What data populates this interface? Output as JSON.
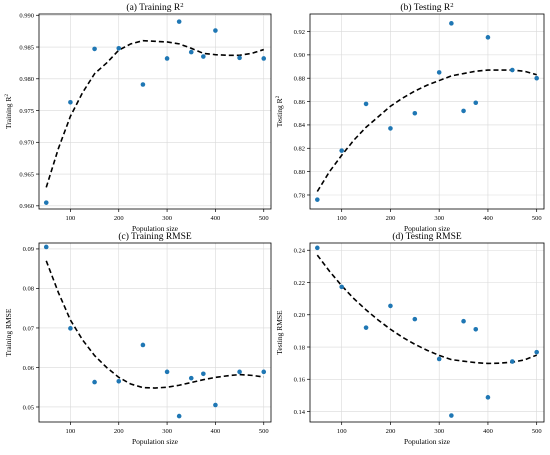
{
  "chart_data": [
    {
      "type": "scatter",
      "title": "(a) Training R",
      "title_sup": "2",
      "xlabel": "Population size",
      "ylabel": "Training R",
      "ylabel_sup": "2",
      "xlim": [
        35,
        515
      ],
      "ylim": [
        0.9595,
        0.9902
      ],
      "xticks": [
        100,
        200,
        300,
        400,
        500
      ],
      "yticks": [
        0.96,
        0.965,
        0.97,
        0.975,
        0.98,
        0.985,
        0.99
      ],
      "ytick_labels": [
        "0.960",
        "0.965",
        "0.970",
        "0.975",
        "0.980",
        "0.985",
        "0.990"
      ],
      "grid": true,
      "series": [
        {
          "kind": "points",
          "x": [
            50,
            100,
            150,
            200,
            250,
            300,
            325,
            350,
            375,
            400,
            450,
            500
          ],
          "y": [
            0.9605,
            0.9763,
            0.9847,
            0.9848,
            0.9791,
            0.9832,
            0.989,
            0.9842,
            0.9835,
            0.9876,
            0.9833,
            0.9832
          ]
        },
        {
          "kind": "fit",
          "x": [
            50,
            75,
            100,
            125,
            150,
            175,
            200,
            225,
            250,
            275,
            300,
            325,
            350,
            375,
            400,
            425,
            450,
            475,
            500
          ],
          "y": [
            0.9629,
            0.969,
            0.9741,
            0.9778,
            0.9808,
            0.9825,
            0.9845,
            0.9855,
            0.986,
            0.9859,
            0.9858,
            0.9855,
            0.9848,
            0.984,
            0.9838,
            0.9837,
            0.9837,
            0.984,
            0.9846
          ]
        }
      ]
    },
    {
      "type": "scatter",
      "title": "(b) Testing R",
      "title_sup": "2",
      "xlabel": "Population size",
      "ylabel": "Testing R",
      "ylabel_sup": "2",
      "xlim": [
        35,
        515
      ],
      "ylim": [
        0.768,
        0.935
      ],
      "xticks": [
        100,
        200,
        300,
        400,
        500
      ],
      "yticks": [
        0.78,
        0.8,
        0.82,
        0.84,
        0.86,
        0.88,
        0.9,
        0.92
      ],
      "ytick_labels": [
        "0.78",
        "0.80",
        "0.82",
        "0.84",
        "0.86",
        "0.88",
        "0.90",
        "0.92"
      ],
      "grid": true,
      "series": [
        {
          "kind": "points",
          "x": [
            50,
            100,
            150,
            200,
            250,
            300,
            325,
            350,
            375,
            400,
            450,
            500
          ],
          "y": [
            0.776,
            0.818,
            0.858,
            0.837,
            0.85,
            0.885,
            0.927,
            0.852,
            0.859,
            0.915,
            0.887,
            0.88
          ]
        },
        {
          "kind": "fit",
          "x": [
            50,
            75,
            100,
            125,
            150,
            175,
            200,
            225,
            250,
            275,
            300,
            325,
            350,
            375,
            400,
            425,
            450,
            475,
            500
          ],
          "y": [
            0.783,
            0.8,
            0.814,
            0.827,
            0.838,
            0.847,
            0.856,
            0.863,
            0.869,
            0.874,
            0.878,
            0.882,
            0.884,
            0.886,
            0.887,
            0.887,
            0.887,
            0.886,
            0.883
          ]
        }
      ]
    },
    {
      "type": "scatter",
      "title": "(c) Training RMSE",
      "xlabel": "Population size",
      "ylabel": "Training RMSE",
      "xlim": [
        35,
        515
      ],
      "ylim": [
        0.0462,
        0.0915
      ],
      "xticks": [
        100,
        200,
        300,
        400,
        500
      ],
      "yticks": [
        0.05,
        0.06,
        0.07,
        0.08,
        0.09
      ],
      "ytick_labels": [
        "0.05",
        "0.06",
        "0.07",
        "0.08",
        "0.09"
      ],
      "grid": true,
      "series": [
        {
          "kind": "points",
          "x": [
            50,
            100,
            150,
            200,
            250,
            300,
            325,
            350,
            375,
            400,
            450,
            500
          ],
          "y": [
            0.0905,
            0.0699,
            0.0563,
            0.0565,
            0.0657,
            0.0589,
            0.0477,
            0.0573,
            0.0584,
            0.0505,
            0.0589,
            0.0589
          ]
        },
        {
          "kind": "fit",
          "x": [
            50,
            75,
            100,
            125,
            150,
            175,
            200,
            225,
            250,
            275,
            300,
            325,
            350,
            375,
            400,
            425,
            450,
            475,
            500
          ],
          "y": [
            0.087,
            0.079,
            0.072,
            0.067,
            0.063,
            0.06,
            0.0575,
            0.0558,
            0.0549,
            0.0548,
            0.055,
            0.0555,
            0.0562,
            0.0569,
            0.0575,
            0.0579,
            0.0582,
            0.058,
            0.0576
          ]
        }
      ]
    },
    {
      "type": "scatter",
      "title": "(d) Testing RMSE",
      "xlabel": "Population size",
      "ylabel": "Testing RMSE",
      "xlim": [
        35,
        515
      ],
      "ylim": [
        0.1335,
        0.2445
      ],
      "xticks": [
        100,
        200,
        300,
        400,
        500
      ],
      "yticks": [
        0.14,
        0.16,
        0.18,
        0.2,
        0.22,
        0.24
      ],
      "ytick_labels": [
        "0.14",
        "0.16",
        "0.18",
        "0.20",
        "0.22",
        "0.24"
      ],
      "grid": true,
      "series": [
        {
          "kind": "points",
          "x": [
            50,
            100,
            150,
            200,
            250,
            300,
            325,
            350,
            375,
            400,
            450,
            500
          ],
          "y": [
            0.2415,
            0.2173,
            0.192,
            0.2055,
            0.1973,
            0.1726,
            0.1375,
            0.196,
            0.191,
            0.1488,
            0.171,
            0.1768
          ]
        },
        {
          "kind": "fit",
          "x": [
            50,
            75,
            100,
            125,
            150,
            175,
            200,
            225,
            250,
            275,
            300,
            325,
            350,
            375,
            400,
            425,
            450,
            475,
            500
          ],
          "y": [
            0.237,
            0.227,
            0.218,
            0.21,
            0.203,
            0.1967,
            0.191,
            0.186,
            0.1817,
            0.178,
            0.1748,
            0.1722,
            0.1712,
            0.1703,
            0.1698,
            0.17,
            0.1706,
            0.172,
            0.175
          ]
        }
      ]
    }
  ]
}
